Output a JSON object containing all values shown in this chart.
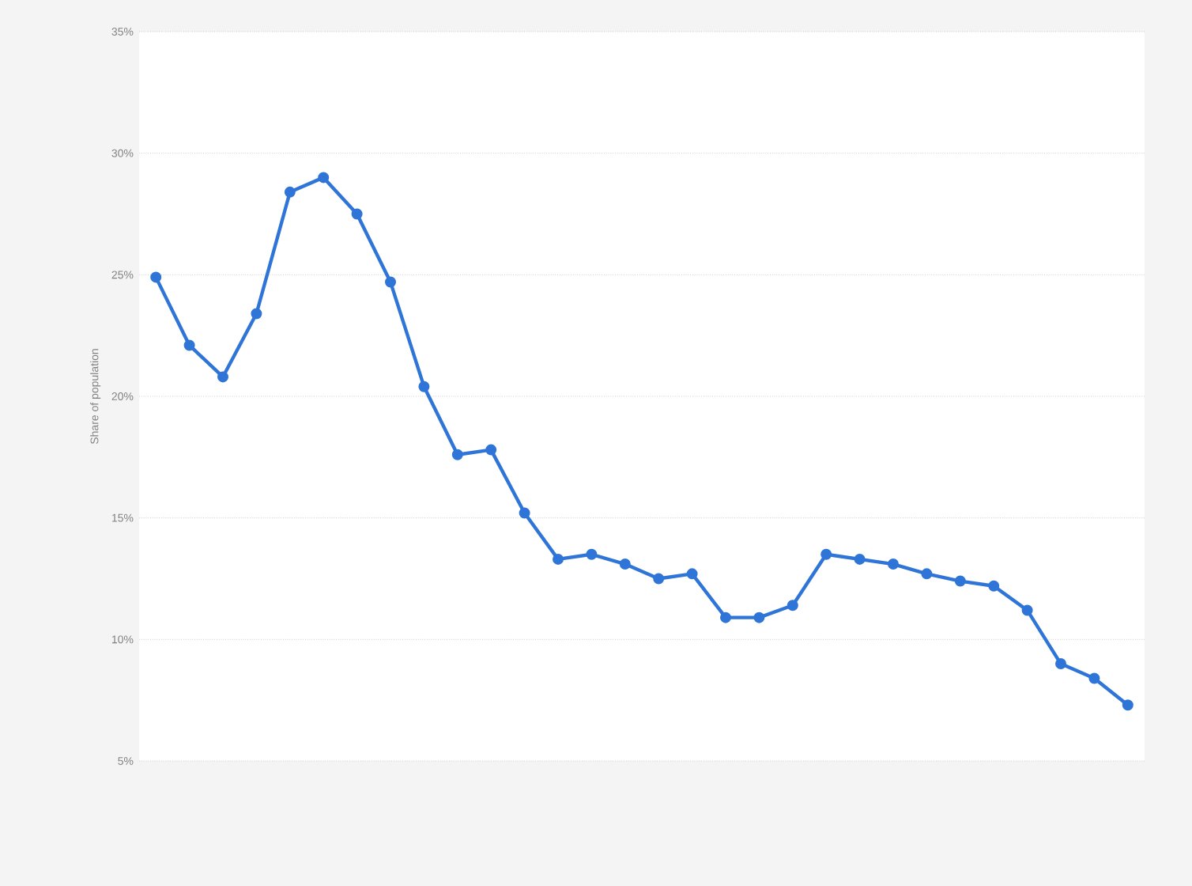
{
  "chart_data": {
    "type": "line",
    "ylabel": "Share of population",
    "categories": [
      null,
      null,
      null,
      null,
      null,
      null,
      null,
      null,
      null,
      null,
      null,
      null,
      null,
      null,
      null,
      null,
      null,
      null,
      null,
      null,
      null,
      null,
      null,
      null,
      null,
      null,
      null,
      null,
      null,
      null
    ],
    "series": [
      {
        "color": "#2f75d8",
        "values": [
          24.9,
          22.1,
          20.8,
          23.4,
          28.4,
          29.0,
          27.5,
          24.7,
          20.4,
          17.6,
          17.8,
          15.2,
          13.3,
          13.5,
          13.1,
          12.5,
          12.7,
          10.9,
          10.9,
          11.4,
          13.5,
          13.3,
          13.1,
          12.7,
          12.4,
          12.2,
          11.2,
          9.0,
          8.4,
          7.3
        ]
      }
    ],
    "ylim": [
      5,
      35
    ],
    "yticks": [
      {
        "value": 5,
        "label": "5%"
      },
      {
        "value": 10,
        "label": "10%"
      },
      {
        "value": 15,
        "label": "15%"
      },
      {
        "value": 20,
        "label": "20%"
      },
      {
        "value": 25,
        "label": "25%"
      },
      {
        "value": 30,
        "label": "30%"
      },
      {
        "value": 35,
        "label": "35%"
      }
    ],
    "grid": "y",
    "marker": "circle",
    "line_style": "solid",
    "tick_labels": "y"
  }
}
